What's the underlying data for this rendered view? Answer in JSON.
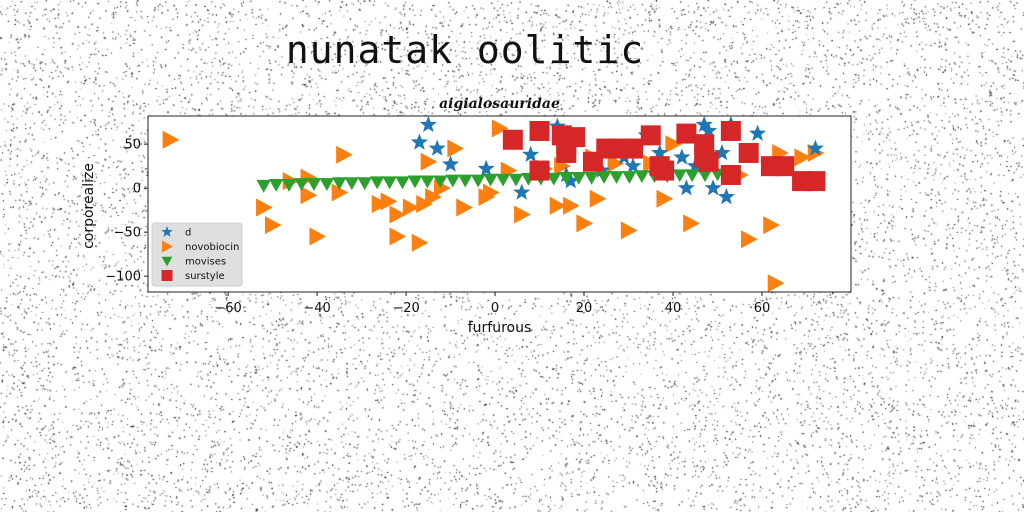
{
  "page": {
    "title": "nunatak oolitic"
  },
  "chart_data": {
    "type": "scatter",
    "title": "aigialosauridae",
    "xlabel": "furfurous",
    "ylabel": "corporealize",
    "xlim": [
      -78,
      80
    ],
    "ylim": [
      -118,
      82
    ],
    "xticks": [
      -60,
      -40,
      -20,
      0,
      20,
      40,
      60
    ],
    "yticks": [
      50,
      0,
      -50,
      -100
    ],
    "grid": false,
    "legend_position": "lower-left",
    "series": [
      {
        "name": "d",
        "marker": "star",
        "color": "#1f77b4",
        "x": [
          -15,
          -17,
          -13,
          -10,
          -2,
          6,
          8,
          14,
          16,
          17,
          22,
          24,
          29,
          31,
          34,
          37,
          42,
          43,
          45,
          47,
          48,
          49,
          51,
          52,
          53,
          59,
          72
        ],
        "y": [
          72,
          52,
          45,
          27,
          22,
          -5,
          38,
          70,
          15,
          8,
          30,
          20,
          35,
          25,
          60,
          40,
          35,
          0,
          25,
          72,
          65,
          0,
          40,
          -10,
          72,
          62,
          45
        ]
      },
      {
        "name": "novobiocin",
        "marker": "triangle-right",
        "color": "#ff7f0e",
        "x": [
          -73,
          -52,
          -50,
          -46,
          -42,
          -42,
          -40,
          -35,
          -34,
          -26,
          -24,
          -22,
          -22,
          -19,
          -17,
          -16,
          -15,
          -14,
          -12,
          -9,
          -7,
          -2,
          -1,
          1,
          3,
          6,
          11,
          14,
          15,
          17,
          20,
          22,
          23,
          27,
          30,
          35,
          38,
          40,
          44,
          47,
          55,
          57,
          62,
          63,
          64,
          69,
          72
        ],
        "y": [
          55,
          -22,
          -42,
          8,
          12,
          -8,
          -55,
          -5,
          38,
          -18,
          -15,
          -30,
          -55,
          -22,
          -62,
          -18,
          30,
          -10,
          0,
          45,
          -22,
          -10,
          -5,
          68,
          20,
          -30,
          22,
          -20,
          25,
          -20,
          -40,
          35,
          -12,
          28,
          -48,
          28,
          -12,
          50,
          -40,
          45,
          15,
          -58,
          -42,
          -108,
          40,
          35,
          40
        ],
        "note_points_hidden": 0
      },
      {
        "name": "movises",
        "marker": "triangle-down",
        "color": "#2ca02c",
        "x": [
          -52,
          -49.2,
          -46.3,
          -43.5,
          -40.7,
          -37.8,
          -35,
          -32.2,
          -29.3,
          -26.5,
          -23.7,
          -20.8,
          -18,
          -15.2,
          -12.3,
          -9.5,
          -6.7,
          -3.8,
          -1,
          1.8,
          4.7,
          7.5,
          10.3,
          13.2,
          16,
          18.8,
          21.7,
          24.5,
          27.3,
          30.2,
          33,
          35.8,
          38.7,
          41.5,
          44.3,
          47.2,
          50
        ],
        "y": [
          3,
          4,
          4,
          5,
          5,
          5,
          6,
          6,
          6,
          7,
          7,
          7,
          8,
          8,
          8,
          9,
          9,
          9,
          10,
          10,
          10,
          11,
          11,
          11,
          12,
          12,
          12,
          13,
          13,
          13,
          14,
          14,
          14,
          15,
          15,
          15,
          16
        ]
      },
      {
        "name": "surstyle",
        "marker": "square",
        "color": "#d62728",
        "x": [
          4,
          10,
          10,
          15,
          16,
          16,
          18,
          22,
          25,
          28,
          31,
          35,
          37,
          38,
          43,
          47,
          47,
          48,
          53,
          53,
          57,
          62,
          65,
          69,
          72
        ],
        "y": [
          55,
          65,
          20,
          60,
          50,
          40,
          58,
          30,
          45,
          45,
          45,
          60,
          25,
          20,
          62,
          50,
          35,
          30,
          15,
          65,
          40,
          25,
          25,
          8,
          8
        ]
      }
    ]
  }
}
